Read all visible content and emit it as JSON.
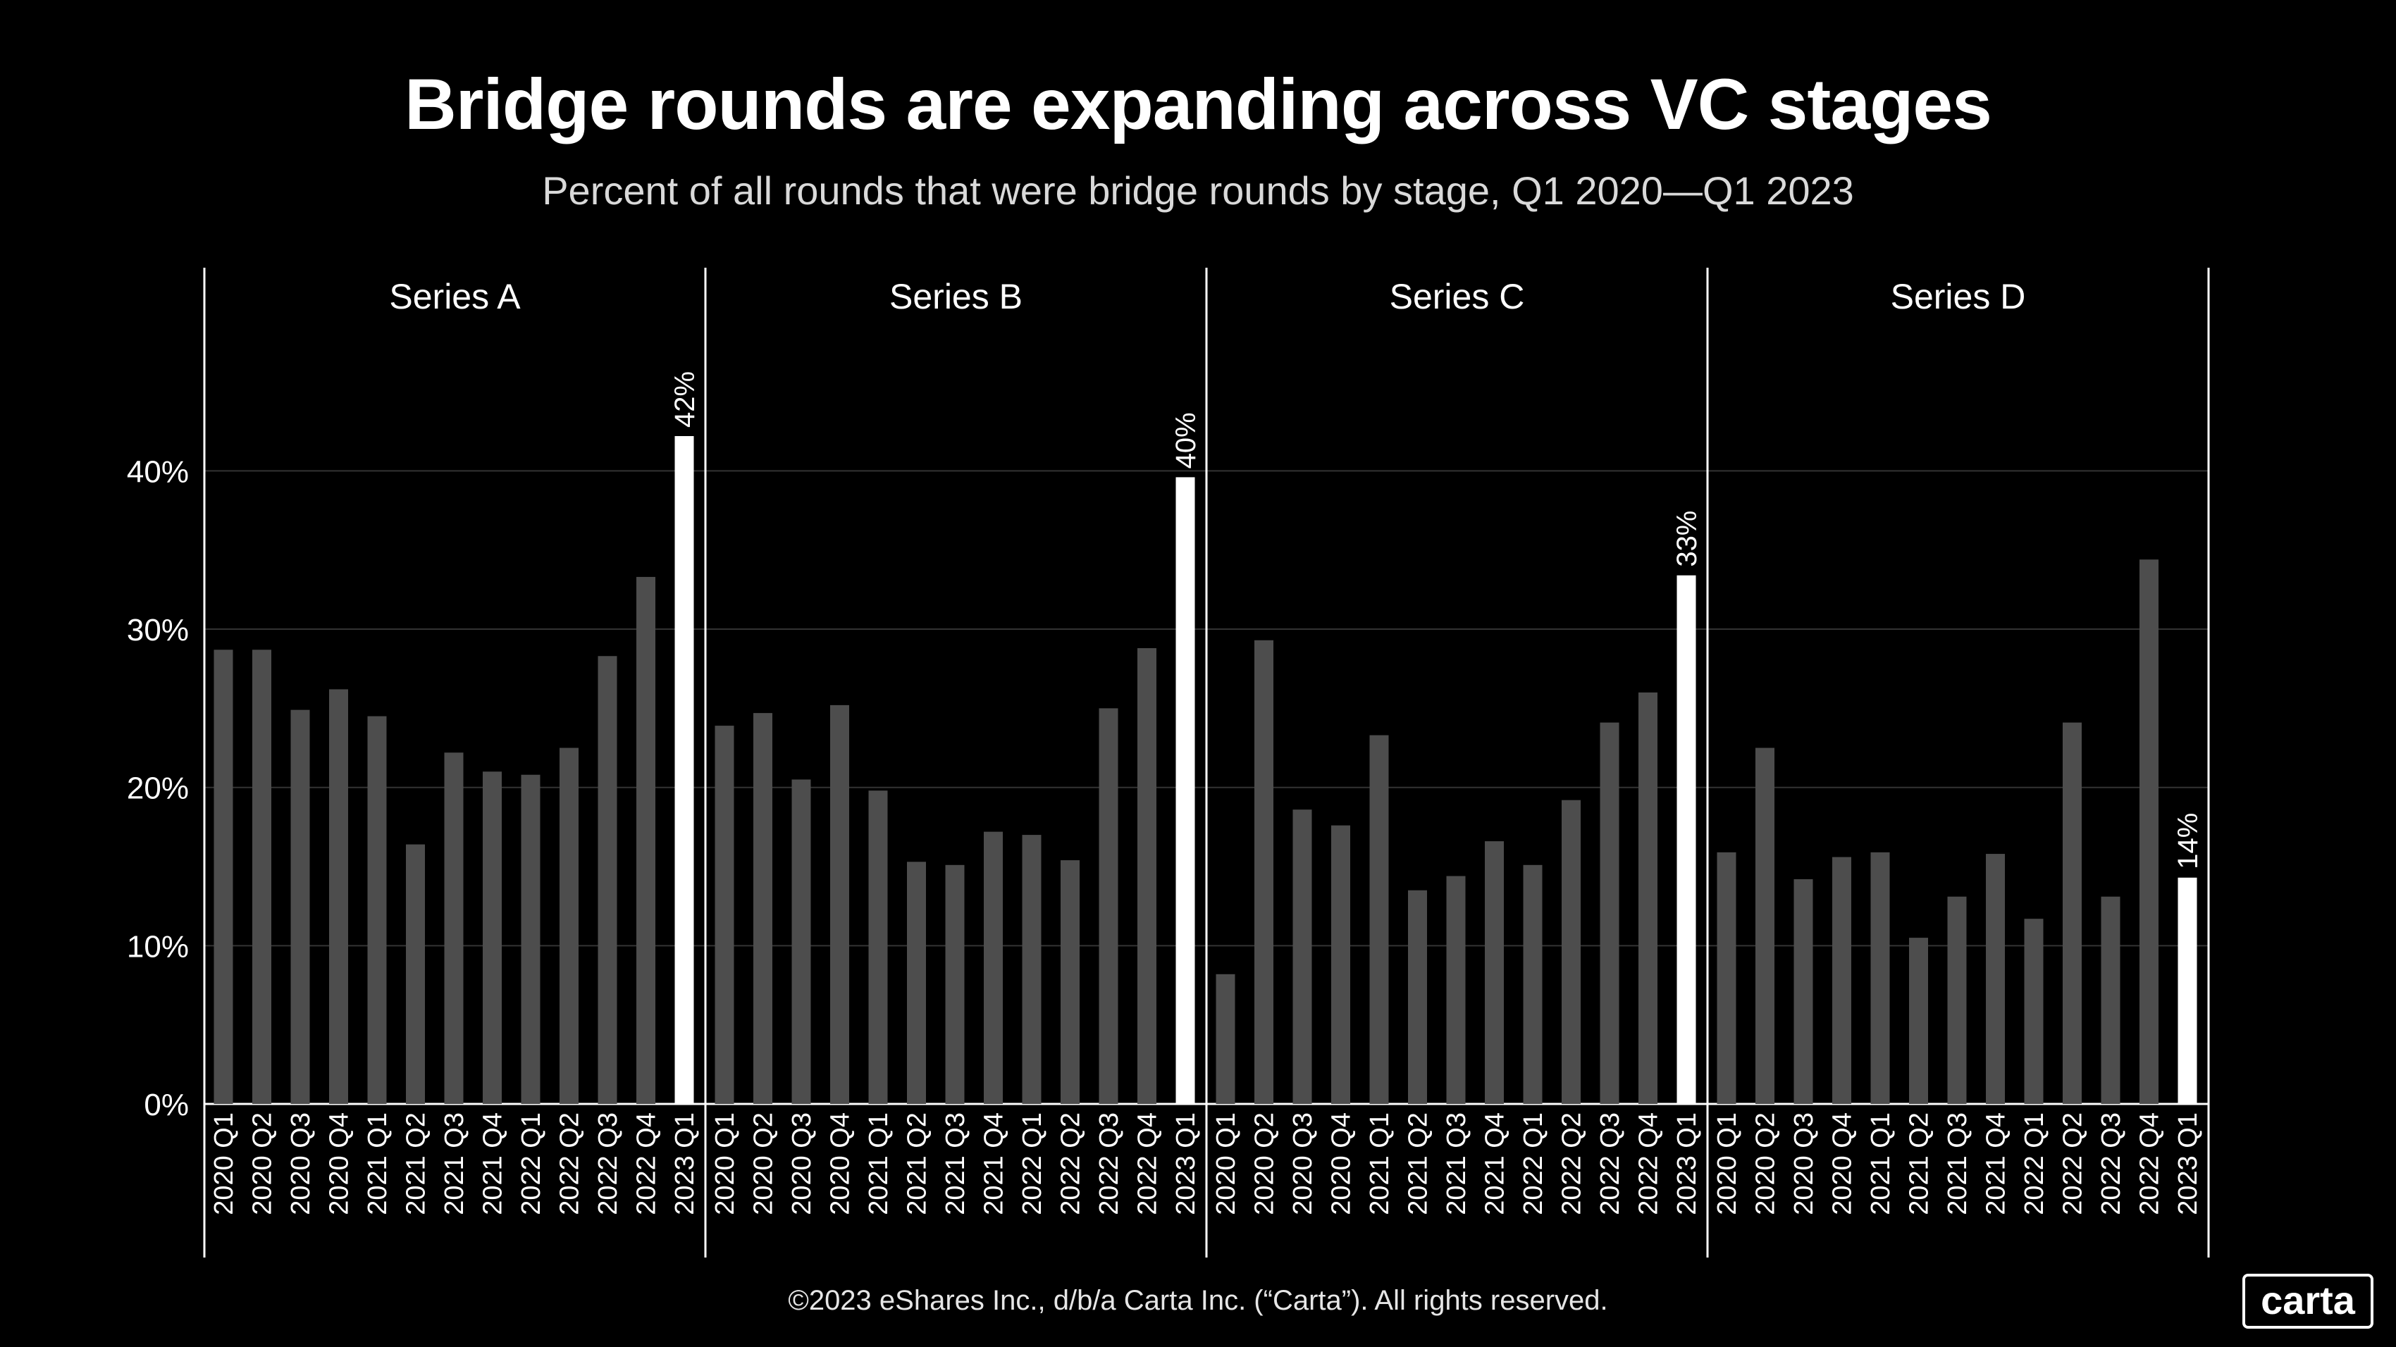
{
  "title": "Bridge rounds are expanding across VC stages",
  "subtitle": "Percent of all rounds that were bridge rounds by stage, Q1 2020—Q1 2023",
  "footer": "©2023 eShares Inc., d/b/a Carta Inc. (“Carta”). All rights reserved.",
  "logo": "carta",
  "colors": {
    "background": "#000000",
    "bar": "#4d4d4d",
    "highlight_bar": "#ffffff",
    "grid": "#333333",
    "text": "#ffffff"
  },
  "chart_data": {
    "type": "bar",
    "categories": [
      "2020 Q1",
      "2020 Q2",
      "2020 Q3",
      "2020 Q4",
      "2021 Q1",
      "2021 Q2",
      "2021 Q3",
      "2021 Q4",
      "2022 Q1",
      "2022 Q2",
      "2022 Q3",
      "2022 Q4",
      "2023 Q1"
    ],
    "y_ticks": [
      {
        "value": 0,
        "label": "0%"
      },
      {
        "value": 10,
        "label": "10%"
      },
      {
        "value": 20,
        "label": "20%"
      },
      {
        "value": 30,
        "label": "30%"
      },
      {
        "value": 40,
        "label": "40%"
      }
    ],
    "ylim": [
      0,
      49.5
    ],
    "grid": true,
    "highlight_last": true,
    "series": [
      {
        "name": "Series A",
        "values": [
          28.7,
          28.7,
          24.9,
          26.2,
          24.5,
          16.4,
          22.2,
          21.0,
          20.8,
          22.5,
          28.3,
          33.3,
          42.2
        ],
        "last_label": "42%"
      },
      {
        "name": "Series B",
        "values": [
          23.9,
          24.7,
          20.5,
          25.2,
          19.8,
          15.3,
          15.1,
          17.2,
          17.0,
          15.4,
          25.0,
          28.8,
          39.6
        ],
        "last_label": "40%"
      },
      {
        "name": "Series C",
        "values": [
          8.2,
          29.3,
          18.6,
          17.6,
          23.3,
          13.5,
          14.4,
          16.6,
          15.1,
          19.2,
          24.1,
          26.0,
          33.4
        ],
        "last_label": "33%"
      },
      {
        "name": "Series D",
        "values": [
          15.9,
          22.5,
          14.2,
          15.6,
          15.9,
          10.5,
          13.1,
          15.8,
          11.7,
          24.1,
          13.1,
          34.4,
          14.3
        ],
        "last_label": "14%"
      }
    ]
  }
}
